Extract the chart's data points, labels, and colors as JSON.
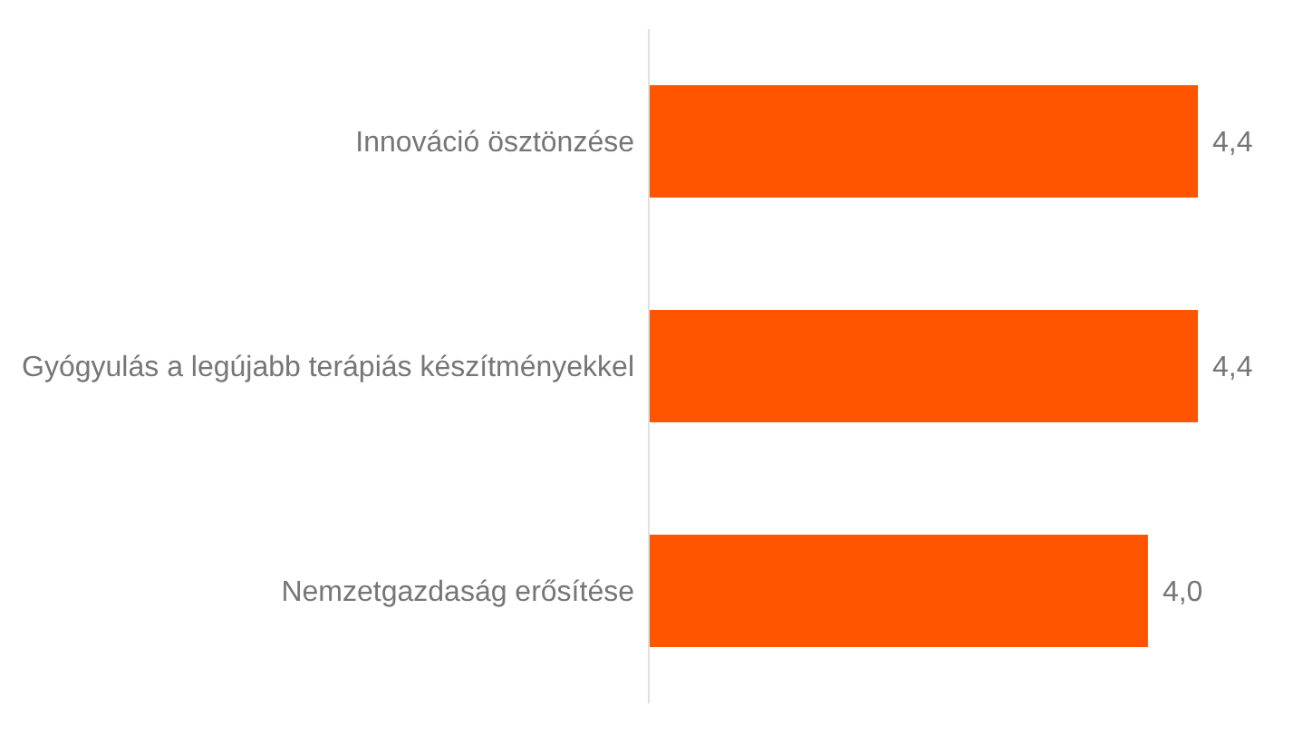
{
  "chart_data": {
    "type": "bar",
    "orientation": "horizontal",
    "categories": [
      "Innováció ösztönzése",
      "Gyógyulás a legújabb terápiás készítményekkel",
      "Nemzetgazdaság erősítése"
    ],
    "values": [
      4.4,
      4.4,
      4.0
    ],
    "value_labels": [
      "4,4",
      "4,4",
      "4,0"
    ],
    "color": "#ff5400",
    "grid": false,
    "legend": false
  }
}
